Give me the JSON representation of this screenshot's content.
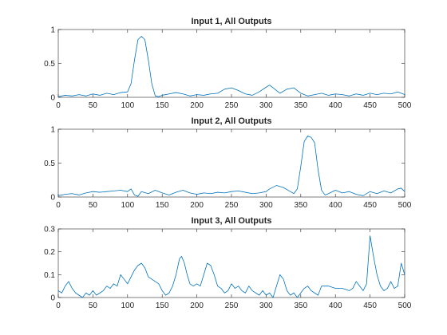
{
  "window": {
    "background": "#ffffff"
  },
  "chart_data": [
    {
      "type": "line",
      "title": "Input 1, All Outputs",
      "xlim": [
        0,
        500
      ],
      "ylim": [
        0,
        1
      ],
      "xticks": [
        0,
        50,
        100,
        150,
        200,
        250,
        300,
        350,
        400,
        450,
        500
      ],
      "yticks": [
        0,
        0.5,
        1
      ],
      "ytick_labels": [
        "0",
        "0.5",
        "1"
      ],
      "grid": false,
      "series": [
        {
          "color": "#0072bd",
          "points": [
            [
              0,
              0.01
            ],
            [
              10,
              0.03
            ],
            [
              20,
              0.02
            ],
            [
              30,
              0.04
            ],
            [
              40,
              0.02
            ],
            [
              50,
              0.05
            ],
            [
              60,
              0.03
            ],
            [
              70,
              0.06
            ],
            [
              80,
              0.04
            ],
            [
              90,
              0.07
            ],
            [
              100,
              0.08
            ],
            [
              105,
              0.2
            ],
            [
              110,
              0.55
            ],
            [
              115,
              0.85
            ],
            [
              120,
              0.9
            ],
            [
              125,
              0.85
            ],
            [
              130,
              0.55
            ],
            [
              135,
              0.2
            ],
            [
              140,
              0.02
            ],
            [
              145,
              0.01
            ],
            [
              150,
              0.03
            ],
            [
              160,
              0.05
            ],
            [
              170,
              0.07
            ],
            [
              180,
              0.05
            ],
            [
              190,
              0.02
            ],
            [
              200,
              0.04
            ],
            [
              210,
              0.03
            ],
            [
              220,
              0.05
            ],
            [
              230,
              0.06
            ],
            [
              240,
              0.12
            ],
            [
              250,
              0.14
            ],
            [
              260,
              0.1
            ],
            [
              270,
              0.05
            ],
            [
              280,
              0.03
            ],
            [
              290,
              0.08
            ],
            [
              300,
              0.15
            ],
            [
              305,
              0.18
            ],
            [
              310,
              0.14
            ],
            [
              320,
              0.06
            ],
            [
              330,
              0.12
            ],
            [
              340,
              0.14
            ],
            [
              350,
              0.06
            ],
            [
              360,
              0.02
            ],
            [
              370,
              0.04
            ],
            [
              380,
              0.06
            ],
            [
              390,
              0.03
            ],
            [
              400,
              0.05
            ],
            [
              410,
              0.04
            ],
            [
              420,
              0.02
            ],
            [
              430,
              0.05
            ],
            [
              440,
              0.03
            ],
            [
              450,
              0.06
            ],
            [
              460,
              0.04
            ],
            [
              470,
              0.06
            ],
            [
              480,
              0.05
            ],
            [
              490,
              0.08
            ],
            [
              495,
              0.06
            ],
            [
              500,
              0.04
            ]
          ]
        }
      ]
    },
    {
      "type": "line",
      "title": "Input 2, All Outputs",
      "xlim": [
        0,
        500
      ],
      "ylim": [
        0,
        1
      ],
      "xticks": [
        0,
        50,
        100,
        150,
        200,
        250,
        300,
        350,
        400,
        450,
        500
      ],
      "yticks": [
        0,
        0.5,
        1
      ],
      "ytick_labels": [
        "0",
        "0.5",
        "1"
      ],
      "grid": false,
      "series": [
        {
          "color": "#0072bd",
          "points": [
            [
              0,
              0.02
            ],
            [
              10,
              0.04
            ],
            [
              20,
              0.05
            ],
            [
              30,
              0.03
            ],
            [
              40,
              0.06
            ],
            [
              50,
              0.08
            ],
            [
              60,
              0.07
            ],
            [
              70,
              0.08
            ],
            [
              80,
              0.09
            ],
            [
              90,
              0.1
            ],
            [
              100,
              0.08
            ],
            [
              105,
              0.12
            ],
            [
              110,
              0.03
            ],
            [
              115,
              0.01
            ],
            [
              120,
              0.08
            ],
            [
              130,
              0.05
            ],
            [
              140,
              0.1
            ],
            [
              150,
              0.06
            ],
            [
              160,
              0.03
            ],
            [
              170,
              0.07
            ],
            [
              180,
              0.1
            ],
            [
              190,
              0.06
            ],
            [
              200,
              0.04
            ],
            [
              210,
              0.06
            ],
            [
              220,
              0.05
            ],
            [
              230,
              0.07
            ],
            [
              240,
              0.06
            ],
            [
              250,
              0.08
            ],
            [
              260,
              0.09
            ],
            [
              270,
              0.07
            ],
            [
              280,
              0.05
            ],
            [
              290,
              0.06
            ],
            [
              300,
              0.08
            ],
            [
              305,
              0.12
            ],
            [
              315,
              0.17
            ],
            [
              325,
              0.14
            ],
            [
              335,
              0.08
            ],
            [
              340,
              0.05
            ],
            [
              345,
              0.12
            ],
            [
              350,
              0.45
            ],
            [
              355,
              0.82
            ],
            [
              360,
              0.9
            ],
            [
              365,
              0.88
            ],
            [
              370,
              0.8
            ],
            [
              375,
              0.4
            ],
            [
              380,
              0.1
            ],
            [
              385,
              0.03
            ],
            [
              390,
              0.05
            ],
            [
              400,
              0.1
            ],
            [
              410,
              0.06
            ],
            [
              420,
              0.08
            ],
            [
              430,
              0.04
            ],
            [
              440,
              0.02
            ],
            [
              450,
              0.08
            ],
            [
              460,
              0.05
            ],
            [
              470,
              0.09
            ],
            [
              480,
              0.06
            ],
            [
              490,
              0.12
            ],
            [
              495,
              0.13
            ],
            [
              500,
              0.08
            ]
          ]
        }
      ]
    },
    {
      "type": "line",
      "title": "Input 3, All Outputs",
      "xlim": [
        0,
        500
      ],
      "ylim": [
        0,
        0.3
      ],
      "xticks": [
        0,
        50,
        100,
        150,
        200,
        250,
        300,
        350,
        400,
        450,
        500
      ],
      "yticks": [
        0,
        0.1,
        0.2,
        0.3
      ],
      "ytick_labels": [
        "0",
        "0.1",
        "0.2",
        "0.3"
      ],
      "grid": false,
      "series": [
        {
          "color": "#0072bd",
          "points": [
            [
              0,
              0.03
            ],
            [
              5,
              0.02
            ],
            [
              10,
              0.05
            ],
            [
              15,
              0.07
            ],
            [
              20,
              0.04
            ],
            [
              25,
              0.02
            ],
            [
              30,
              0.01
            ],
            [
              35,
              0.0
            ],
            [
              40,
              0.02
            ],
            [
              45,
              0.01
            ],
            [
              50,
              0.03
            ],
            [
              55,
              0.01
            ],
            [
              60,
              0.02
            ],
            [
              65,
              0.03
            ],
            [
              70,
              0.05
            ],
            [
              75,
              0.04
            ],
            [
              80,
              0.06
            ],
            [
              85,
              0.05
            ],
            [
              90,
              0.1
            ],
            [
              95,
              0.08
            ],
            [
              100,
              0.06
            ],
            [
              105,
              0.09
            ],
            [
              110,
              0.12
            ],
            [
              115,
              0.14
            ],
            [
              120,
              0.15
            ],
            [
              125,
              0.13
            ],
            [
              130,
              0.09
            ],
            [
              135,
              0.08
            ],
            [
              140,
              0.07
            ],
            [
              145,
              0.06
            ],
            [
              150,
              0.03
            ],
            [
              155,
              0.01
            ],
            [
              160,
              0.02
            ],
            [
              165,
              0.05
            ],
            [
              170,
              0.1
            ],
            [
              175,
              0.17
            ],
            [
              178,
              0.18
            ],
            [
              182,
              0.15
            ],
            [
              186,
              0.1
            ],
            [
              190,
              0.06
            ],
            [
              195,
              0.05
            ],
            [
              200,
              0.06
            ],
            [
              205,
              0.05
            ],
            [
              210,
              0.1
            ],
            [
              215,
              0.15
            ],
            [
              220,
              0.14
            ],
            [
              225,
              0.1
            ],
            [
              230,
              0.05
            ],
            [
              235,
              0.04
            ],
            [
              240,
              0.02
            ],
            [
              245,
              0.03
            ],
            [
              250,
              0.06
            ],
            [
              255,
              0.04
            ],
            [
              260,
              0.05
            ],
            [
              265,
              0.03
            ],
            [
              270,
              0.02
            ],
            [
              275,
              0.05
            ],
            [
              280,
              0.03
            ],
            [
              285,
              0.02
            ],
            [
              290,
              0.01
            ],
            [
              295,
              0.03
            ],
            [
              300,
              0.01
            ],
            [
              305,
              0.02
            ],
            [
              310,
              0.0
            ],
            [
              315,
              0.05
            ],
            [
              320,
              0.1
            ],
            [
              325,
              0.08
            ],
            [
              330,
              0.03
            ],
            [
              335,
              0.01
            ],
            [
              340,
              0.02
            ],
            [
              345,
              0.0
            ],
            [
              350,
              0.02
            ],
            [
              355,
              0.04
            ],
            [
              360,
              0.05
            ],
            [
              365,
              0.03
            ],
            [
              370,
              0.02
            ],
            [
              375,
              0.01
            ],
            [
              380,
              0.05
            ],
            [
              390,
              0.05
            ],
            [
              400,
              0.04
            ],
            [
              410,
              0.04
            ],
            [
              420,
              0.03
            ],
            [
              425,
              0.04
            ],
            [
              430,
              0.07
            ],
            [
              435,
              0.05
            ],
            [
              440,
              0.03
            ],
            [
              445,
              0.06
            ],
            [
              450,
              0.27
            ],
            [
              455,
              0.18
            ],
            [
              460,
              0.1
            ],
            [
              465,
              0.05
            ],
            [
              470,
              0.03
            ],
            [
              475,
              0.04
            ],
            [
              480,
              0.07
            ],
            [
              485,
              0.04
            ],
            [
              490,
              0.05
            ],
            [
              495,
              0.15
            ],
            [
              500,
              0.1
            ]
          ]
        }
      ]
    }
  ]
}
